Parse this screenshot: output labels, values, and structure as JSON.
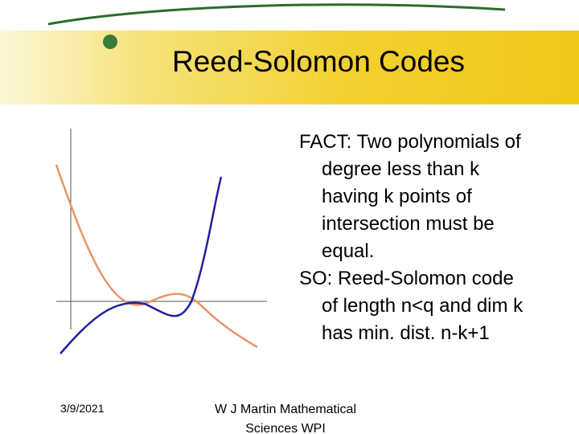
{
  "header": {
    "title": "Reed-Solomon Codes"
  },
  "body": {
    "paragraphs": [
      "FACT: Two polynomials of degree less than k having k points of intersection must be equal.",
      "SO: Reed-Solomon code of length n<q and dim k has min. dist. n-k+1"
    ]
  },
  "footer": {
    "date": "3/9/2021",
    "text": "W J Martin Mathematical Sciences WPI"
  }
}
